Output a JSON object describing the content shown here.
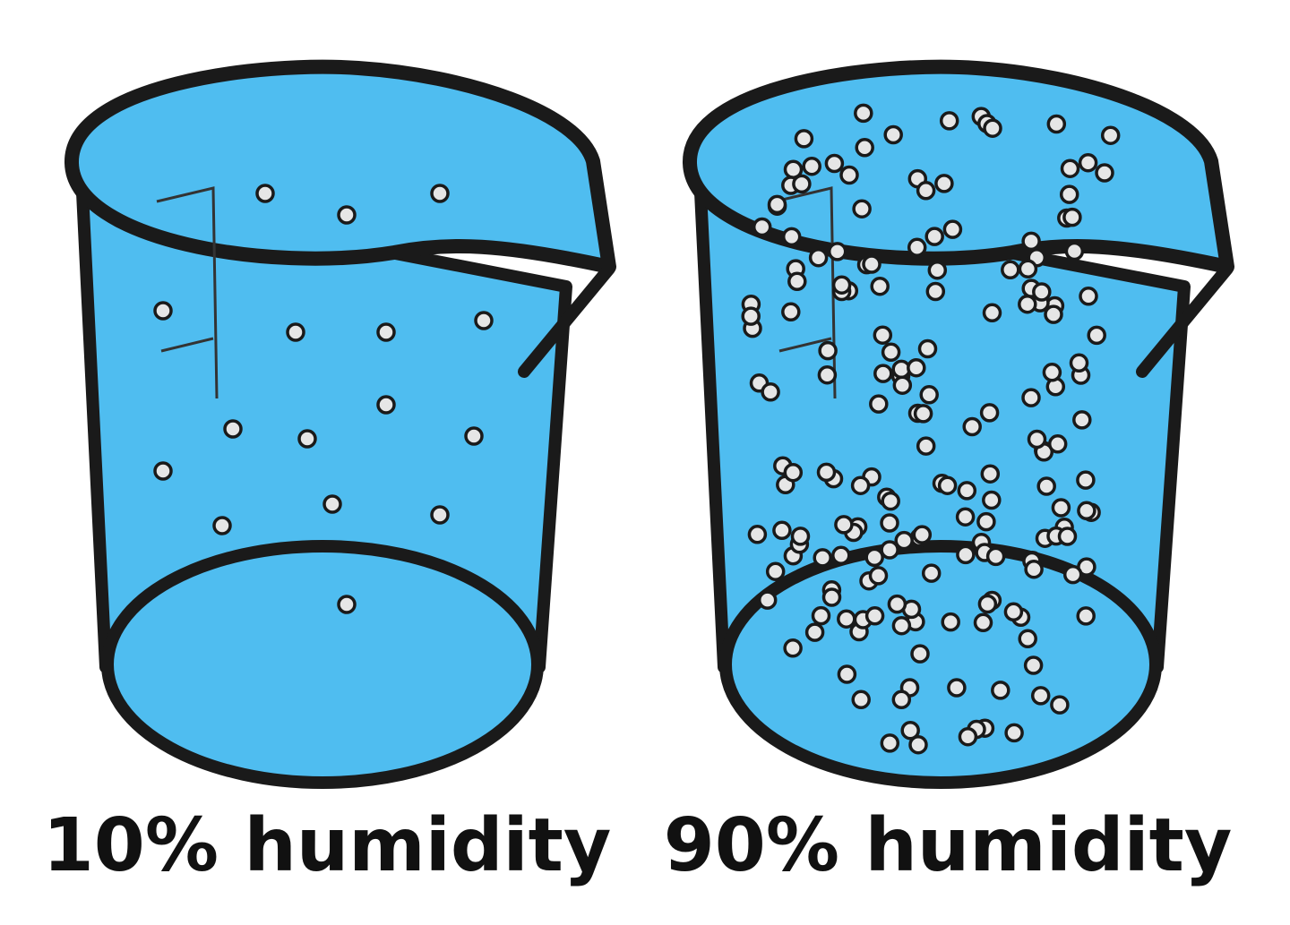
{
  "labels": [
    "10% humidity",
    "90% humidity"
  ]
}
